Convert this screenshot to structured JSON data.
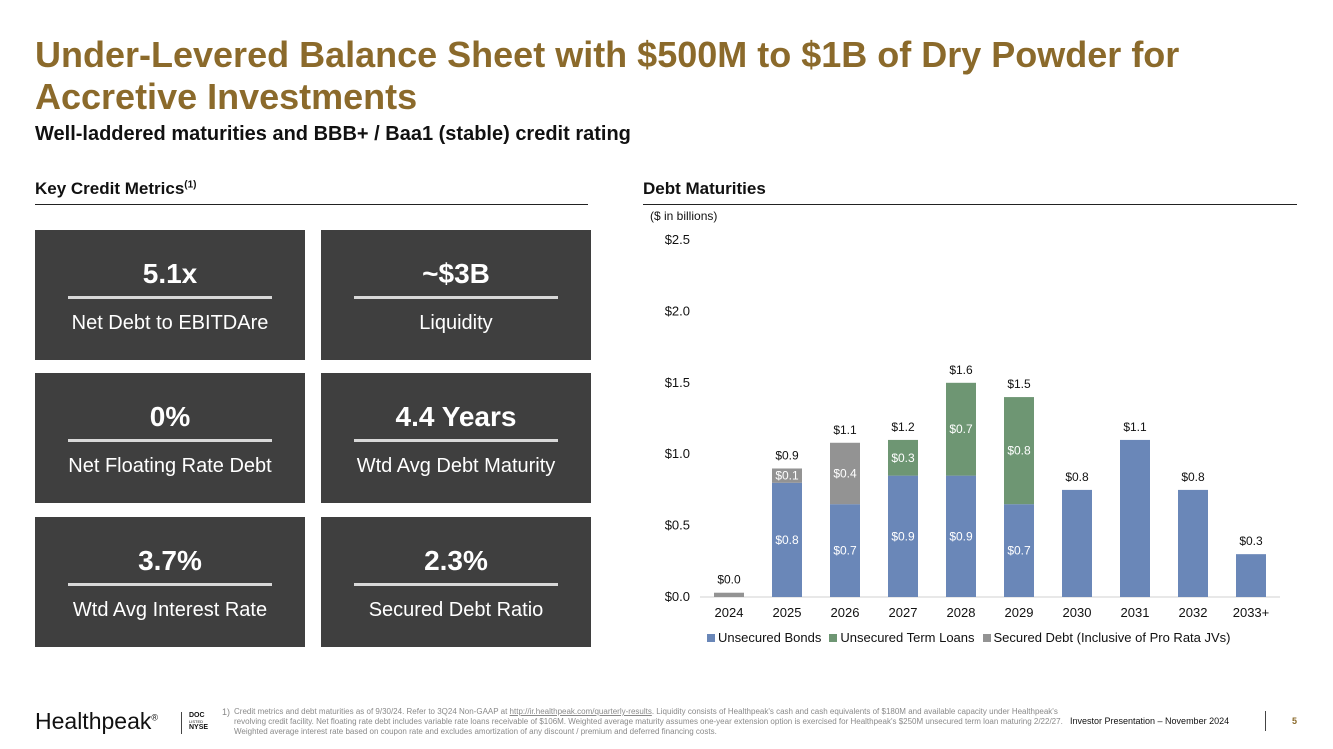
{
  "header": {
    "title": "Under-Levered Balance Sheet with $500M to $1B of Dry Powder for Accretive Investments",
    "subtitle": "Well-laddered maturities and BBB+ / Baa1 (stable) credit rating"
  },
  "left_section": {
    "heading": "Key Credit Metrics",
    "heading_sup": "(1)",
    "metrics": [
      {
        "value": "5.1x",
        "label": "Net Debt to EBITDAre"
      },
      {
        "value": "~$3B",
        "label": "Liquidity"
      },
      {
        "value": "0%",
        "label": "Net Floating Rate Debt"
      },
      {
        "value": "4.4 Years",
        "label": "Wtd Avg Debt Maturity"
      },
      {
        "value": "3.7%",
        "label": "Wtd Avg Interest Rate"
      },
      {
        "value": "2.3%",
        "label": "Secured Debt Ratio"
      }
    ]
  },
  "right_section": {
    "heading": "Debt Maturities",
    "units": "($ in billions)"
  },
  "chart_data": {
    "type": "bar",
    "stacked": true,
    "title": "Debt Maturities",
    "ylabel": "($ in billions)",
    "ylim": [
      0,
      2.5
    ],
    "yticks": [
      "$0.0",
      "$0.5",
      "$1.0",
      "$1.5",
      "$2.0",
      "$2.5"
    ],
    "ytick_values": [
      0,
      0.5,
      1.0,
      1.5,
      2.0,
      2.5
    ],
    "categories": [
      "2024",
      "2025",
      "2026",
      "2027",
      "2028",
      "2029",
      "2030",
      "2031",
      "2032",
      "2033+"
    ],
    "series": [
      {
        "name": "Unsecured Bonds",
        "color": "#6a87b8",
        "values": [
          0,
          0.8,
          0.65,
          0.85,
          0.85,
          0.65,
          0.75,
          1.1,
          0.75,
          0.3
        ],
        "labels": [
          "",
          "$0.8",
          "$0.7",
          "$0.9",
          "$0.9",
          "$0.7",
          "",
          "",
          "",
          ""
        ]
      },
      {
        "name": "Unsecured Term Loans",
        "color": "#6e9673",
        "values": [
          0,
          0,
          0,
          0.25,
          0.65,
          0.75,
          0,
          0,
          0,
          0
        ],
        "labels": [
          "",
          "",
          "",
          "$0.3",
          "$0.7",
          "$0.8",
          "",
          "",
          "",
          ""
        ]
      },
      {
        "name": "Secured Debt (Inclusive of Pro Rata JVs)",
        "color": "#939393",
        "values": [
          0.03,
          0.1,
          0.43,
          0,
          0,
          0,
          0,
          0,
          0,
          0
        ],
        "labels": [
          "",
          "$0.1",
          "$0.4",
          "",
          "",
          "",
          "",
          "",
          "",
          ""
        ]
      }
    ],
    "totals": [
      "$0.0",
      "$0.9",
      "$1.1",
      "$1.2",
      "$1.6",
      "$1.5",
      "$0.8",
      "$1.1",
      "$0.8",
      "$0.3"
    ],
    "legend": "bottom"
  },
  "footer": {
    "brand": "Healthpeak",
    "brand_mark": "®",
    "ticker_line1": "DOC",
    "ticker_line2": "LISTED",
    "ticker_line3": "NYSE",
    "footnote_marker": "1)",
    "footnote_pre": "Credit metrics and debt maturities as of 9/30/24. Refer to 3Q24 Non-GAAP at ",
    "footnote_link": "http://ir.healthpeak.com/quarterly-results",
    "footnote_post": ". Liquidity consists of Healthpeak's cash and cash equivalents of $180M and available capacity under Healthpeak's revolving credit facility. Net floating rate debt includes variable rate loans receivable of $106M. Weighted average maturity assumes one-year extension option is exercised for Healthpeak's $250M unsecured term loan maturing 2/22/27. Weighted average interest rate based on coupon rate and excludes amortization of any discount / premium and deferred financing costs.",
    "presentation": "Investor Presentation – November 2024",
    "page_number": "5"
  },
  "colors": {
    "accent": "#8b6a2b",
    "tile": "#3f3f3f",
    "bonds": "#6a87b8",
    "term_loans": "#6e9673",
    "secured": "#939393"
  }
}
